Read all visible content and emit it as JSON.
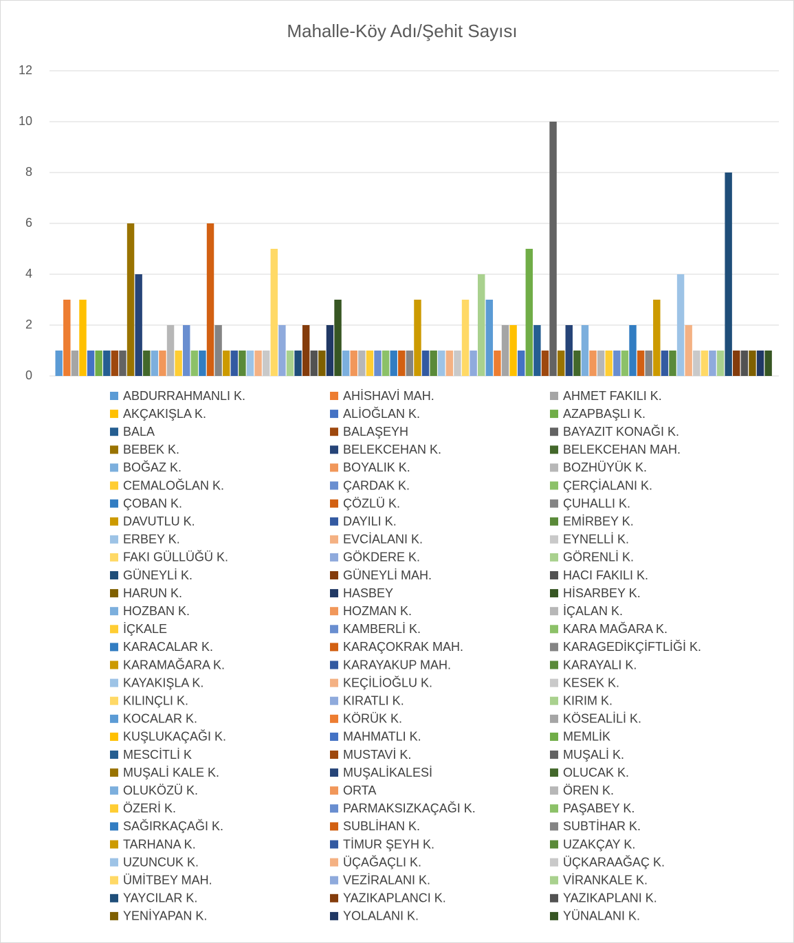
{
  "chart_data": {
    "type": "bar",
    "title": "Mahalle-Köy Adı/Şehit Sayısı",
    "ylim": [
      0,
      12
    ],
    "yticks": [
      0,
      2,
      4,
      6,
      8,
      10,
      12
    ],
    "grid": true,
    "legend": "bottom",
    "series": [
      {
        "name": "ABDURRAHMANLI K.",
        "color": "#5B9BD5",
        "values": [
          1
        ]
      },
      {
        "name": "AHİSHAVİ MAH.",
        "color": "#ED7D31",
        "values": [
          3
        ]
      },
      {
        "name": "AHMET FAKILI K.",
        "color": "#A5A5A5",
        "values": [
          1
        ]
      },
      {
        "name": "AKÇAKIŞLA K.",
        "color": "#FFC000",
        "values": [
          3
        ]
      },
      {
        "name": "ALİOĞLAN K.",
        "color": "#4472C4",
        "values": [
          1
        ]
      },
      {
        "name": "AZAPBAŞLI K.",
        "color": "#70AD47",
        "values": [
          1
        ]
      },
      {
        "name": "BALA",
        "color": "#255E91",
        "values": [
          1
        ]
      },
      {
        "name": "BALAŞEYH",
        "color": "#9E480E",
        "values": [
          1
        ]
      },
      {
        "name": "BAYAZIT KONAĞI K.",
        "color": "#636363",
        "values": [
          1
        ]
      },
      {
        "name": "BEBEK K.",
        "color": "#997300",
        "values": [
          6
        ]
      },
      {
        "name": "BELEKCEHAN K.",
        "color": "#264478",
        "values": [
          4
        ]
      },
      {
        "name": "BELEKCEHAN MAH.",
        "color": "#43682B",
        "values": [
          1
        ]
      },
      {
        "name": "BOĞAZ K.",
        "color": "#7CAFDD",
        "values": [
          1
        ]
      },
      {
        "name": "BOYALIK K.",
        "color": "#F1975A",
        "values": [
          1
        ]
      },
      {
        "name": "BOZHÜYÜK K.",
        "color": "#B7B7B7",
        "values": [
          2
        ]
      },
      {
        "name": "CEMALOĞLAN K.",
        "color": "#FFCD33",
        "values": [
          1
        ]
      },
      {
        "name": "ÇARDAK K.",
        "color": "#698ED0",
        "values": [
          2
        ]
      },
      {
        "name": "ÇERÇİALANI K.",
        "color": "#8CC168",
        "values": [
          1
        ]
      },
      {
        "name": "ÇOBAN K.",
        "color": "#327DC2",
        "values": [
          1
        ]
      },
      {
        "name": "ÇÖZLÜ K.",
        "color": "#D26012",
        "values": [
          6
        ]
      },
      {
        "name": "ÇUHALLI K.",
        "color": "#848484",
        "values": [
          2
        ]
      },
      {
        "name": "DAVUTLU K.",
        "color": "#CC9A00",
        "values": [
          1
        ]
      },
      {
        "name": "DAYILI K.",
        "color": "#335AA1",
        "values": [
          1
        ]
      },
      {
        "name": "EMİRBEY K.",
        "color": "#5A8A39",
        "values": [
          1
        ]
      },
      {
        "name": "ERBEY K.",
        "color": "#9DC3E6",
        "values": [
          1
        ]
      },
      {
        "name": "EVCİALANI K.",
        "color": "#F4B183",
        "values": [
          1
        ]
      },
      {
        "name": "EYNELLİ K.",
        "color": "#C9C9C9",
        "values": [
          1
        ]
      },
      {
        "name": "FAKI GÜLLÜĞÜ K.",
        "color": "#FFD966",
        "values": [
          5
        ]
      },
      {
        "name": "GÖKDERE K.",
        "color": "#8FAADC",
        "values": [
          2
        ]
      },
      {
        "name": "GÖRENLİ K.",
        "color": "#A9D18E",
        "values": [
          1
        ]
      },
      {
        "name": "GÜNEYLİ K.",
        "color": "#1F4E79",
        "values": [
          1
        ]
      },
      {
        "name": "GÜNEYLİ MAH.",
        "color": "#843C0C",
        "values": [
          2
        ]
      },
      {
        "name": "HACI FAKILI K.",
        "color": "#525252",
        "values": [
          1
        ]
      },
      {
        "name": "HARUN K.",
        "color": "#7F6000",
        "values": [
          1
        ]
      },
      {
        "name": "HASBEY",
        "color": "#203864",
        "values": [
          2
        ]
      },
      {
        "name": "HİSARBEY K.",
        "color": "#375623",
        "values": [
          3
        ]
      },
      {
        "name": "HOZBAN K.",
        "color": "#7CAFDD",
        "values": [
          1
        ]
      },
      {
        "name": "HOZMAN K.",
        "color": "#F1975A",
        "values": [
          1
        ]
      },
      {
        "name": "İÇALAN K.",
        "color": "#B7B7B7",
        "values": [
          1
        ]
      },
      {
        "name": "İÇKALE",
        "color": "#FFCD33",
        "values": [
          1
        ]
      },
      {
        "name": "KAMBERLİ K.",
        "color": "#698ED0",
        "values": [
          1
        ]
      },
      {
        "name": "KARA MAĞARA K.",
        "color": "#8CC168",
        "values": [
          1
        ]
      },
      {
        "name": "KARACALAR K.",
        "color": "#327DC2",
        "values": [
          1
        ]
      },
      {
        "name": "KARAÇOKRAK MAH.",
        "color": "#D26012",
        "values": [
          1
        ]
      },
      {
        "name": "KARAGEDİKÇİFTLİĞİ K.",
        "color": "#848484",
        "values": [
          1
        ]
      },
      {
        "name": "KARAMAĞARA K.",
        "color": "#CC9A00",
        "values": [
          3
        ]
      },
      {
        "name": "KARAYAKUP MAH.",
        "color": "#335AA1",
        "values": [
          1
        ]
      },
      {
        "name": "KARAYALI K.",
        "color": "#5A8A39",
        "values": [
          1
        ]
      },
      {
        "name": "KAYAKIŞLA K.",
        "color": "#9DC3E6",
        "values": [
          1
        ]
      },
      {
        "name": "KEÇİLİOĞLU K.",
        "color": "#F4B183",
        "values": [
          1
        ]
      },
      {
        "name": "KESEK K.",
        "color": "#C9C9C9",
        "values": [
          1
        ]
      },
      {
        "name": "KILINÇLI K.",
        "color": "#FFD966",
        "values": [
          3
        ]
      },
      {
        "name": "KIRATLI K.",
        "color": "#8FAADC",
        "values": [
          1
        ]
      },
      {
        "name": "KIRIM K.",
        "color": "#A9D18E",
        "values": [
          4
        ]
      },
      {
        "name": "KOCALAR K.",
        "color": "#5B9BD5",
        "values": [
          3
        ]
      },
      {
        "name": "KÖRÜK K.",
        "color": "#ED7D31",
        "values": [
          1
        ]
      },
      {
        "name": "KÖSEALİLİ K.",
        "color": "#A5A5A5",
        "values": [
          2
        ]
      },
      {
        "name": "KUŞLUKAÇAĞI K.",
        "color": "#FFC000",
        "values": [
          2
        ]
      },
      {
        "name": "MAHMATLI K.",
        "color": "#4472C4",
        "values": [
          1
        ]
      },
      {
        "name": "MEMLİK",
        "color": "#70AD47",
        "values": [
          5
        ]
      },
      {
        "name": "MESCİTLİ K",
        "color": "#255E91",
        "values": [
          2
        ]
      },
      {
        "name": "MUSTAVİ K.",
        "color": "#9E480E",
        "values": [
          1
        ]
      },
      {
        "name": "MUŞALİ K.",
        "color": "#636363",
        "values": [
          10
        ]
      },
      {
        "name": "MUŞALİ KALE K.",
        "color": "#997300",
        "values": [
          1
        ]
      },
      {
        "name": "MUŞALİKALESİ",
        "color": "#264478",
        "values": [
          2
        ]
      },
      {
        "name": "OLUCAK K.",
        "color": "#43682B",
        "values": [
          1
        ]
      },
      {
        "name": "OLUKÖZÜ K.",
        "color": "#7CAFDD",
        "values": [
          2
        ]
      },
      {
        "name": "ORTA",
        "color": "#F1975A",
        "values": [
          1
        ]
      },
      {
        "name": "ÖREN K.",
        "color": "#B7B7B7",
        "values": [
          1
        ]
      },
      {
        "name": "ÖZERİ K.",
        "color": "#FFCD33",
        "values": [
          1
        ]
      },
      {
        "name": "PARMAKSIZKAÇAĞI K.",
        "color": "#698ED0",
        "values": [
          1
        ]
      },
      {
        "name": "PAŞABEY K.",
        "color": "#8CC168",
        "values": [
          1
        ]
      },
      {
        "name": "SAĞIRKAÇAĞI K.",
        "color": "#327DC2",
        "values": [
          2
        ]
      },
      {
        "name": "SUBLİHAN K.",
        "color": "#D26012",
        "values": [
          1
        ]
      },
      {
        "name": "SUBTİHAR K.",
        "color": "#848484",
        "values": [
          1
        ]
      },
      {
        "name": "TARHANA K.",
        "color": "#CC9A00",
        "values": [
          3
        ]
      },
      {
        "name": "TİMUR ŞEYH K.",
        "color": "#335AA1",
        "values": [
          1
        ]
      },
      {
        "name": "UZAKÇAY K.",
        "color": "#5A8A39",
        "values": [
          1
        ]
      },
      {
        "name": "UZUNCUK K.",
        "color": "#9DC3E6",
        "values": [
          4
        ]
      },
      {
        "name": "ÜÇAĞAÇLI K.",
        "color": "#F4B183",
        "values": [
          2
        ]
      },
      {
        "name": "ÜÇKARAAĞAÇ K.",
        "color": "#C9C9C9",
        "values": [
          1
        ]
      },
      {
        "name": "ÜMİTBEY MAH.",
        "color": "#FFD966",
        "values": [
          1
        ]
      },
      {
        "name": "VEZİRALANI K.",
        "color": "#8FAADC",
        "values": [
          1
        ]
      },
      {
        "name": "VİRANKALE K.",
        "color": "#A9D18E",
        "values": [
          1
        ]
      },
      {
        "name": "YAYCILAR K.",
        "color": "#1F4E79",
        "values": [
          8
        ]
      },
      {
        "name": "YAZIKAPLANCI K.",
        "color": "#843C0C",
        "values": [
          1
        ]
      },
      {
        "name": "YAZIKAPLANI K.",
        "color": "#525252",
        "values": [
          1
        ]
      },
      {
        "name": "YENİYAPAN K.",
        "color": "#7F6000",
        "values": [
          1
        ]
      },
      {
        "name": "YOLALANI K.",
        "color": "#203864",
        "values": [
          1
        ]
      },
      {
        "name": "YÜNALANI K.",
        "color": "#375623",
        "values": [
          1
        ]
      }
    ]
  }
}
